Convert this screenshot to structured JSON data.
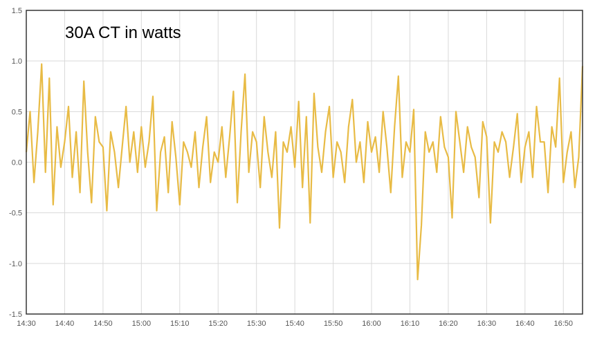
{
  "chart_data": {
    "type": "line",
    "title": "30A CT in watts",
    "xlabel": "",
    "ylabel": "",
    "ylim": [
      -1.5,
      1.5
    ],
    "yticks": [
      "1.5",
      "1.0",
      "0.5",
      "0.0",
      "-0.5",
      "-1.0",
      "-1.5"
    ],
    "ytick_values": [
      1.5,
      1.0,
      0.5,
      0.0,
      -0.5,
      -1.0,
      -1.5
    ],
    "xlim": [
      "14:30",
      "16:55"
    ],
    "xticks": [
      "14:30",
      "14:40",
      "14:50",
      "15:00",
      "15:10",
      "15:20",
      "15:30",
      "15:40",
      "15:50",
      "16:00",
      "16:10",
      "16:20",
      "16:30",
      "16:40",
      "16:50"
    ],
    "grid": true,
    "legend": "none",
    "colors": {
      "series": "#e8bb45",
      "grid": "#d9d9d9",
      "frame": "#333333"
    },
    "series": [
      {
        "x": [
          "14:30",
          "14:31",
          "14:32",
          "14:33",
          "14:34",
          "14:35",
          "14:36",
          "14:37",
          "14:38",
          "14:39",
          "14:40",
          "14:41",
          "14:42",
          "14:43",
          "14:44",
          "14:45",
          "14:46",
          "14:47",
          "14:48",
          "14:49",
          "14:50",
          "14:51",
          "14:52",
          "14:53",
          "14:54",
          "14:55",
          "14:56",
          "14:57",
          "14:58",
          "14:59",
          "15:00",
          "15:01",
          "15:02",
          "15:03",
          "15:04",
          "15:05",
          "15:06",
          "15:07",
          "15:08",
          "15:09",
          "15:10",
          "15:11",
          "15:12",
          "15:13",
          "15:14",
          "15:15",
          "15:16",
          "15:17",
          "15:18",
          "15:19",
          "15:20",
          "15:21",
          "15:22",
          "15:23",
          "15:24",
          "15:25",
          "15:26",
          "15:27",
          "15:28",
          "15:29",
          "15:30",
          "15:31",
          "15:32",
          "15:33",
          "15:34",
          "15:35",
          "15:36",
          "15:37",
          "15:38",
          "15:39",
          "15:40",
          "15:41",
          "15:42",
          "15:43",
          "15:44",
          "15:45",
          "15:46",
          "15:47",
          "15:48",
          "15:49",
          "15:50",
          "15:51",
          "15:52",
          "15:53",
          "15:54",
          "15:55",
          "15:56",
          "15:57",
          "15:58",
          "15:59",
          "16:00",
          "16:01",
          "16:02",
          "16:03",
          "16:04",
          "16:05",
          "16:06",
          "16:07",
          "16:08",
          "16:09",
          "16:10",
          "16:11",
          "16:12",
          "16:13",
          "16:14",
          "16:15",
          "16:16",
          "16:17",
          "16:18",
          "16:19",
          "16:20",
          "16:21",
          "16:22",
          "16:23",
          "16:24",
          "16:25",
          "16:26",
          "16:27",
          "16:28",
          "16:29",
          "16:30",
          "16:31",
          "16:32",
          "16:33",
          "16:34",
          "16:35",
          "16:36",
          "16:37",
          "16:38",
          "16:39",
          "16:40",
          "16:41",
          "16:42",
          "16:43",
          "16:44",
          "16:45",
          "16:46",
          "16:47",
          "16:48",
          "16:49",
          "16:50",
          "16:51",
          "16:52",
          "16:53",
          "16:54",
          "16:55"
        ],
        "y": [
          0.1,
          0.5,
          -0.2,
          0.3,
          0.97,
          -0.1,
          0.83,
          -0.42,
          0.35,
          -0.05,
          0.2,
          0.55,
          -0.15,
          0.3,
          -0.3,
          0.8,
          0.1,
          -0.4,
          0.45,
          0.2,
          0.15,
          -0.48,
          0.3,
          0.1,
          -0.25,
          0.15,
          0.55,
          0.0,
          0.3,
          -0.1,
          0.35,
          -0.05,
          0.2,
          0.65,
          -0.48,
          0.1,
          0.25,
          -0.3,
          0.4,
          0.05,
          -0.42,
          0.2,
          0.1,
          -0.05,
          0.3,
          -0.25,
          0.15,
          0.45,
          -0.2,
          0.1,
          0.0,
          0.35,
          -0.15,
          0.25,
          0.7,
          -0.4,
          0.3,
          0.87,
          -0.1,
          0.3,
          0.2,
          -0.25,
          0.45,
          0.1,
          -0.15,
          0.3,
          -0.65,
          0.2,
          0.1,
          0.35,
          -0.05,
          0.6,
          -0.25,
          0.45,
          -0.6,
          0.68,
          0.15,
          -0.1,
          0.3,
          0.55,
          -0.15,
          0.2,
          0.1,
          -0.2,
          0.35,
          0.62,
          0.0,
          0.2,
          -0.2,
          0.4,
          0.1,
          0.25,
          -0.1,
          0.5,
          0.15,
          -0.3,
          0.35,
          0.85,
          -0.15,
          0.2,
          0.1,
          0.52,
          -1.16,
          -0.62,
          0.3,
          0.1,
          0.2,
          -0.1,
          0.45,
          0.15,
          0.05,
          -0.55,
          0.5,
          0.2,
          -0.1,
          0.35,
          0.15,
          0.05,
          -0.35,
          0.4,
          0.25,
          -0.6,
          0.2,
          0.1,
          0.3,
          0.2,
          -0.15,
          0.15,
          0.48,
          -0.2,
          0.15,
          0.3,
          -0.15,
          0.55,
          0.2,
          0.2,
          -0.3,
          0.35,
          0.15,
          0.83,
          -0.2,
          0.1,
          0.3,
          -0.25,
          0.05,
          0.95
        ]
      }
    ]
  }
}
